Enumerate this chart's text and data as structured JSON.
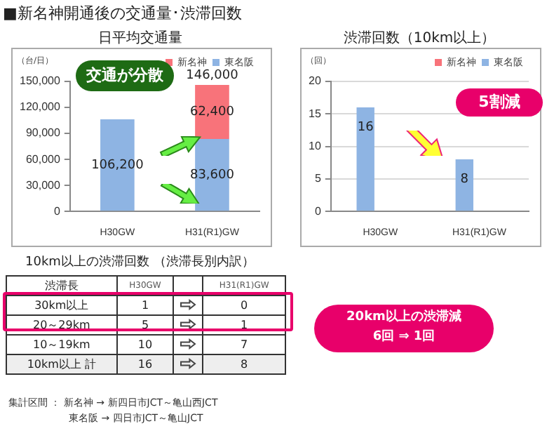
{
  "chart_data": [
    {
      "type": "bar",
      "title": "■新名神開通後の交通量･渋滞回数",
      "subtitle": "日平均交通量",
      "ylabel": "（台/日）",
      "categories": [
        "H30GW",
        "H31(R1)GW"
      ],
      "stacked": true,
      "series": [
        {
          "name": "東名阪",
          "color": "#8eb4e3",
          "values": [
            106200,
            83600
          ],
          "value_labels": [
            "106,200",
            "83,600"
          ]
        },
        {
          "name": "新名神",
          "color": "#f8737a",
          "values": [
            null,
            62400
          ],
          "value_labels": [
            null,
            "62,400"
          ]
        }
      ],
      "totals": [
        null,
        "146,000"
      ],
      "ylim": [
        0,
        150000
      ],
      "yticks": [
        0,
        {
          "value": 30000,
          "label": "30,000"
        },
        {
          "value": 60000,
          "label": "60,000"
        },
        {
          "value": 90000,
          "label": "90,000"
        },
        {
          "value": 120000,
          "label": "120,000"
        },
        {
          "value": 150000,
          "label": "150,000"
        }
      ],
      "grid": false,
      "legend": "top right",
      "annotations": [
        "交通が分散"
      ]
    },
    {
      "type": "bar",
      "subtitle": "渋滞回数（10km以上）",
      "ylabel": "（回）",
      "categories": [
        "H30GW",
        "H31(R1)GW"
      ],
      "series": [
        {
          "name": "東名阪",
          "color": "#8eb4e3",
          "values": [
            16,
            8
          ]
        },
        {
          "name": "新名神",
          "color": "#f8737a",
          "values": [
            null,
            null
          ]
        }
      ],
      "data_labels": true,
      "ylim": [
        0,
        20
      ],
      "yticks": [
        0,
        5,
        10,
        15,
        20
      ],
      "grid": "y",
      "legend": "top right",
      "annotations": [
        "5割減"
      ]
    },
    {
      "type": "other",
      "title": "10km以上の渋滞回数 （渋滞長別内訳）",
      "xlabel": "渋滞長",
      "categories": [
        "30km以上",
        "20～29km",
        "10～19km",
        "10km以上 計"
      ],
      "series": [
        {
          "name": "H30GW",
          "values": [
            1,
            5,
            10,
            16
          ]
        },
        {
          "name": "H31(R1)GW",
          "values": [
            0,
            1,
            7,
            8
          ]
        }
      ],
      "data_labels": true,
      "annotations": [
        "20km以上の渋滞減\n6回 ⇒ 1回",
        "集計区間 ： 新名神 → 新四日市JCT～亀山西JCT",
        "東名阪 → 四日市JCT～亀山JCT"
      ]
    }
  ]
}
